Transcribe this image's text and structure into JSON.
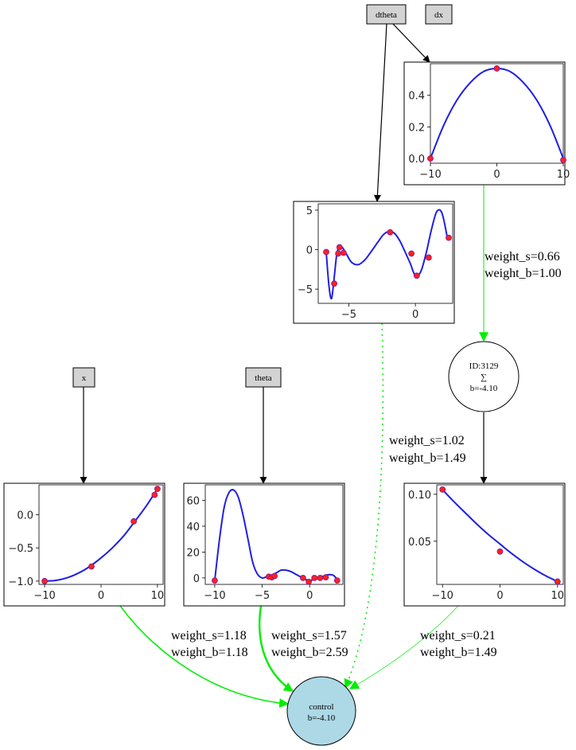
{
  "inputs": [
    {
      "id": "dtheta",
      "label": "dtheta"
    },
    {
      "id": "dx",
      "label": "dx"
    },
    {
      "id": "x",
      "label": "x"
    },
    {
      "id": "theta",
      "label": "theta"
    }
  ],
  "hidden_node": {
    "id_label": "ID:3129",
    "symbol": "∑",
    "bias_label": "b=-4.10",
    "fill": "#ffffff"
  },
  "output_node": {
    "name_label": "control",
    "bias_label": "b=-4.10",
    "fill": "#add8e6"
  },
  "edges": [
    {
      "id": "e-dx-hidden",
      "weight_s": "weight_s=0.66",
      "weight_b": "weight_b=1.00",
      "color": "#00ee00",
      "style": "solid"
    },
    {
      "id": "e-hidden-plot",
      "weight_s": "weight_s=1.02",
      "weight_b": "weight_b=1.49",
      "color": "#000000",
      "style": "solid"
    },
    {
      "id": "e-x-control",
      "weight_s": "weight_s=1.18",
      "weight_b": "weight_b=1.18",
      "color": "#00ee00",
      "style": "solid"
    },
    {
      "id": "e-theta-control",
      "weight_s": "weight_s=1.57",
      "weight_b": "weight_b=2.59",
      "color": "#00ee00",
      "style": "solid"
    },
    {
      "id": "e-hidden-control",
      "weight_s": "weight_s=0.21",
      "weight_b": "weight_b=1.49",
      "color": "#00ee00",
      "style": "solid"
    },
    {
      "id": "e-dtheta-control",
      "color": "#00ee00",
      "style": "dotted"
    }
  ],
  "colors": {
    "curve": "#1f1fe6",
    "points": "#ff2020"
  },
  "chart_data": [
    {
      "id": "dx-activation",
      "type": "line",
      "xlim": [
        -10,
        10
      ],
      "ylim": [
        -0.03,
        0.6
      ],
      "xticks": [
        -10,
        0,
        10
      ],
      "yticks": [
        0.0,
        0.2,
        0.4
      ],
      "xtick_labels": [
        "−10",
        "0",
        "10"
      ],
      "ytick_labels": [
        "0.0",
        "0.2",
        "0.4"
      ],
      "curve_x": [
        -10,
        -8,
        -6,
        -4,
        -2,
        0,
        2,
        4,
        6,
        8,
        10
      ],
      "curve_y": [
        0.0,
        0.21,
        0.37,
        0.48,
        0.55,
        0.57,
        0.55,
        0.48,
        0.37,
        0.21,
        0.0
      ],
      "points_x": [
        -10,
        0,
        10
      ],
      "points_y": [
        0.0,
        0.57,
        -0.01
      ]
    },
    {
      "id": "dtheta-activation",
      "type": "line",
      "xlim": [
        -7.3,
        2.8
      ],
      "ylim": [
        -6.8,
        5.8
      ],
      "xticks": [
        -5,
        0
      ],
      "yticks": [
        -5,
        0,
        5
      ],
      "xtick_labels": [
        "−5",
        "0"
      ],
      "ytick_labels": [
        "−5",
        "0",
        "5"
      ],
      "curve_x": [
        -6.7,
        -6.5,
        -6.3,
        -6.1,
        -5.9,
        -5.7,
        -5.5,
        -5.2,
        -4.8,
        -4.3,
        -3.8,
        -3.3,
        -2.8,
        -2.4,
        -2.0,
        -1.6,
        -1.2,
        -0.8,
        -0.4,
        0.0,
        0.4,
        0.8,
        1.2,
        1.6,
        2.0,
        2.4
      ],
      "curve_y": [
        -0.3,
        -4.5,
        -6.2,
        -3.5,
        -0.5,
        0.4,
        0.3,
        -0.5,
        -1.6,
        -1.9,
        -1.3,
        -0.2,
        1.0,
        1.9,
        2.3,
        2.1,
        1.2,
        -0.2,
        -1.7,
        -3.3,
        -2.8,
        -0.5,
        2.5,
        4.8,
        4.6,
        1.5
      ],
      "points_x": [
        -6.7,
        -6.1,
        -5.8,
        -5.7,
        -5.4,
        -1.9,
        -0.3,
        0.1,
        1.0,
        2.5
      ],
      "points_y": [
        -0.3,
        -4.3,
        -0.5,
        0.3,
        -0.4,
        2.2,
        -0.5,
        -3.3,
        -1.0,
        1.5
      ]
    },
    {
      "id": "x-activation",
      "type": "line",
      "xlim": [
        -11,
        11
      ],
      "ylim": [
        -1.05,
        0.45
      ],
      "xticks": [
        -10,
        0,
        10
      ],
      "yticks": [
        -1.0,
        -0.5,
        0.0
      ],
      "xtick_labels": [
        "−10",
        "0",
        "10"
      ],
      "ytick_labels": [
        "−1.0",
        "−0.5",
        "0.0"
      ],
      "curve_x": [
        -10,
        -8,
        -6,
        -4,
        -2,
        0,
        2,
        4,
        6,
        8,
        10
      ],
      "curve_y": [
        -1.0,
        -0.99,
        -0.95,
        -0.88,
        -0.78,
        -0.65,
        -0.5,
        -0.32,
        -0.1,
        0.13,
        0.39
      ],
      "points_x": [
        -10,
        -1.7,
        5.8,
        9.5,
        10
      ],
      "points_y": [
        -1.0,
        -0.78,
        -0.1,
        0.3,
        0.39
      ]
    },
    {
      "id": "theta-activation",
      "type": "line",
      "xlim": [
        -11,
        3.5
      ],
      "ylim": [
        -5,
        72
      ],
      "xticks": [
        -10,
        -5,
        0
      ],
      "yticks": [
        0,
        20,
        40,
        60
      ],
      "xtick_labels": [
        "−10",
        "−5",
        "0"
      ],
      "ytick_labels": [
        "0",
        "20",
        "40",
        "60"
      ],
      "curve_x": [
        -10,
        -9.5,
        -9.0,
        -8.5,
        -8.0,
        -7.5,
        -7.0,
        -6.5,
        -6.0,
        -5.5,
        -5.0,
        -4.5,
        -4.0,
        -3.5,
        -3.0,
        -2.5,
        -2.0,
        -1.5,
        -1.0,
        -0.5,
        0.0,
        0.5,
        1.0,
        1.5,
        2.0,
        2.5,
        3.0
      ],
      "curve_y": [
        -2,
        30,
        55,
        66,
        68,
        62,
        48,
        30,
        12,
        3,
        0,
        1,
        2,
        4,
        6,
        6,
        5,
        3,
        1,
        -1,
        -2,
        -1,
        0,
        1.5,
        2.5,
        2,
        -2
      ],
      "points_x": [
        -10,
        -4.3,
        -4.0,
        -3.7,
        -0.7,
        -0.1,
        0.5,
        1.1,
        1.7,
        2.9
      ],
      "points_y": [
        -2,
        1,
        0.5,
        1.5,
        0,
        -3,
        0,
        0,
        0.5,
        -2
      ]
    },
    {
      "id": "hidden-activation",
      "type": "line",
      "xlim": [
        -11,
        11
      ],
      "ylim": [
        0.004,
        0.11
      ],
      "xticks": [
        -10,
        0,
        10
      ],
      "yticks": [
        0.05,
        0.1
      ],
      "xtick_labels": [
        "−10",
        "0",
        "10"
      ],
      "ytick_labels": [
        "0.05",
        "0.10"
      ],
      "curve_x": [
        -10,
        -8,
        -6,
        -4,
        -2,
        0,
        2,
        4,
        6,
        8,
        10
      ],
      "curve_y": [
        0.105,
        0.092,
        0.08,
        0.068,
        0.057,
        0.047,
        0.037,
        0.028,
        0.02,
        0.013,
        0.007
      ],
      "points_x": [
        -10,
        0,
        10
      ],
      "points_y": [
        0.105,
        0.039,
        0.007
      ]
    }
  ]
}
